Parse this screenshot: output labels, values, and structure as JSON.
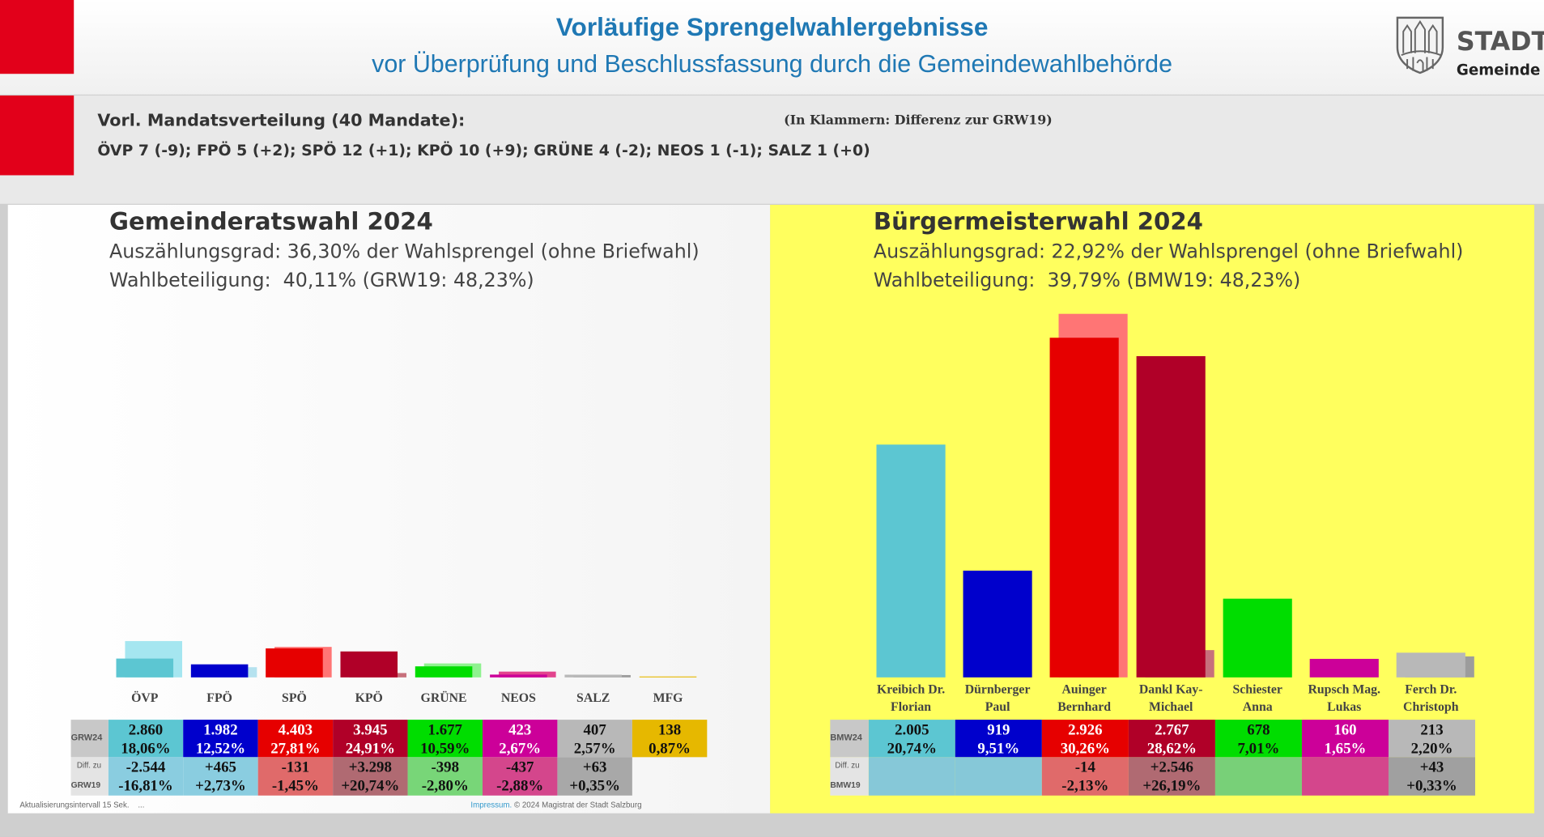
{
  "header": {
    "title": "Vorläufige Sprengelwahlergebnisse",
    "subtitle": "vor Überprüfung und Beschlussfassung durch die Gemeindewahlbehörde",
    "logo_text": "STADT",
    "logo_subtext": "Gemeinde"
  },
  "mandates": {
    "heading": "Vorl. Mandatsverteilung (40 Mandate):",
    "note": "(In Klammern: Differenz zur GRW19)",
    "distribution": "ÖVP 7 (-9); FPÖ 5 (+2); SPÖ 12 (+1); KPÖ 10 (+9); GRÜNE 4 (-2); NEOS 1 (-1); SALZ 1 (+0)"
  },
  "left_panel": {
    "title": "Gemeinderatswahl 2024",
    "counting": "Auszählungsgrad: 36,30% der Wahlsprengel (ohne Briefwahl)",
    "turnout": "Wahlbeteiligung:  40,11% (GRW19: 48,23%)",
    "row_label_current": "GRW24",
    "row_label_diff_1": "Diff. zu",
    "row_label_diff_2": "GRW19",
    "footer_left": "Aktualisierungsintervall 15 Sek.    ...",
    "footer_link": "Impressum.",
    "footer_copy": "© 2024 Magistrat der Stadt Salzburg"
  },
  "right_panel": {
    "title": "Bürgermeisterwahl 2024",
    "counting": "Auszählungsgrad: 22,92% der Wahlsprengel (ohne Briefwahl)",
    "turnout": "Wahlbeteiligung:  39,79% (BMW19: 48,23%)",
    "row_label_current": "BMW24",
    "row_label_diff_1": "Diff. zu",
    "row_label_diff_2": "BMW19"
  },
  "chart_data": [
    {
      "type": "bar",
      "title": "Gemeinderatswahl 2024",
      "categories": [
        "ÖVP",
        "FPÖ",
        "SPÖ",
        "KPÖ",
        "GRÜNE",
        "NEOS",
        "SALZ",
        "MFG"
      ],
      "series": [
        {
          "name": "GRW24",
          "values": [
            18.06,
            12.52,
            27.81,
            24.91,
            10.59,
            2.67,
            2.57,
            0.87
          ]
        },
        {
          "name": "GRW19",
          "values": [
            34.87,
            9.79,
            29.26,
            4.17,
            13.39,
            5.55,
            2.22,
            null
          ]
        }
      ],
      "votes": [
        "2.860",
        "1.982",
        "4.403",
        "3.945",
        "1.677",
        "423",
        "407",
        "138"
      ],
      "percent": [
        "18,06%",
        "12,52%",
        "27,81%",
        "24,91%",
        "10,59%",
        "2,67%",
        "2,57%",
        "0,87%"
      ],
      "diff_votes": [
        "-2.544",
        "+465",
        "-131",
        "+3.298",
        "-398",
        "-437",
        "+63",
        ""
      ],
      "diff_percent": [
        "-16,81%",
        "+2,73%",
        "-1,45%",
        "+20,74%",
        "-2,80%",
        "-2,88%",
        "+0,35%",
        ""
      ],
      "colors": [
        "#5cc6d2",
        "#0000cc",
        "#e60000",
        "#b00028",
        "#00dd00",
        "#cc0099",
        "#b8b8b8",
        "#e6b800"
      ],
      "prev_colors": [
        "#a5e6f0",
        "#b5e2ef",
        "#ff7575",
        "#c7707c",
        "#8ff28f",
        "#e2448e",
        "#9c9c9c",
        ""
      ],
      "diff_colors": [
        "#8acde0",
        "#8acde0",
        "#e06a6a",
        "#b06a72",
        "#78d678",
        "#d4468c",
        "#a8a8a8",
        ""
      ],
      "ylim": [
        0,
        36
      ]
    },
    {
      "type": "bar",
      "title": "Bürgermeisterwahl 2024",
      "categories": [
        "Kreibich Dr. Florian",
        "Dürnberger Paul",
        "Auinger Bernhard",
        "Dankl Kay-Michael",
        "Schiester Anna",
        "Rupsch Mag. Lukas",
        "Ferch Dr. Christoph"
      ],
      "label_lines": [
        [
          "Kreibich Dr.",
          "Florian"
        ],
        [
          "Dürnberger",
          "Paul"
        ],
        [
          "Auinger",
          "Bernhard"
        ],
        [
          "Dankl Kay-",
          "Michael"
        ],
        [
          "Schiester",
          "Anna"
        ],
        [
          "Rupsch Mag.",
          "Lukas"
        ],
        [
          "Ferch Dr.",
          "Christoph"
        ]
      ],
      "series": [
        {
          "name": "BMW24",
          "values": [
            20.74,
            9.51,
            30.26,
            28.62,
            7.01,
            1.65,
            2.2
          ]
        },
        {
          "name": "BMW19",
          "values": [
            null,
            null,
            32.39,
            2.43,
            null,
            null,
            1.87
          ]
        }
      ],
      "votes": [
        "2.005",
        "919",
        "2.926",
        "2.767",
        "678",
        "160",
        "213"
      ],
      "percent": [
        "20,74%",
        "9,51%",
        "30,26%",
        "28,62%",
        "7,01%",
        "1,65%",
        "2,20%"
      ],
      "diff_votes": [
        "",
        "",
        "-14",
        "+2.546",
        "",
        "",
        "+43"
      ],
      "diff_percent": [
        "",
        "",
        "-2,13%",
        "+26,19%",
        "",
        "",
        "+0,33%"
      ],
      "colors": [
        "#5cc6d2",
        "#0000cc",
        "#e60000",
        "#b00028",
        "#00dd00",
        "#cc0099",
        "#b8b8b8"
      ],
      "prev_colors": [
        "",
        "",
        "#ff7575",
        "#c7707c",
        "",
        "",
        "#9c9c9c"
      ],
      "diff_colors": [
        "#86c8d8",
        "#86c8d8",
        "#e06a6a",
        "#b06a72",
        "#78d078",
        "#d4468c",
        "#a0a0a0"
      ],
      "ylim": [
        0,
        33
      ]
    }
  ]
}
